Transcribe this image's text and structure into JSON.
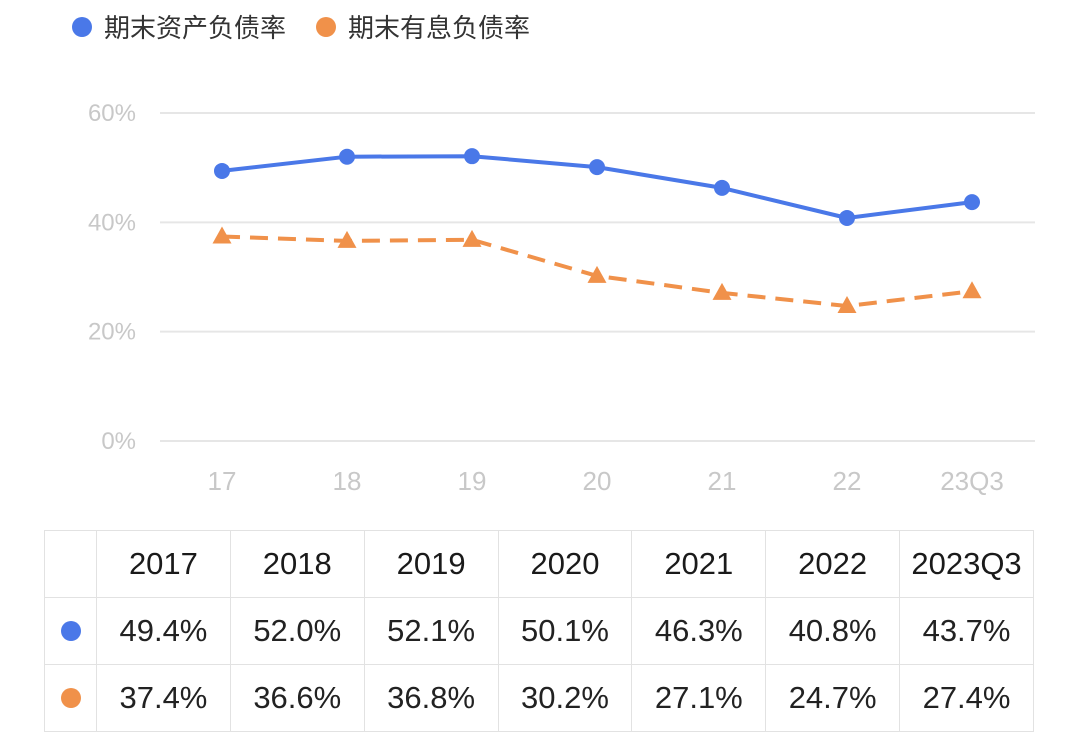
{
  "legend": [
    {
      "label": "期末资产负债率",
      "color": "#4a78e8"
    },
    {
      "label": "期末有息负债率",
      "color": "#f0914a"
    }
  ],
  "chart_data": {
    "type": "line",
    "categories": [
      "17",
      "18",
      "19",
      "20",
      "21",
      "22",
      "23Q3"
    ],
    "ylim": [
      0,
      60
    ],
    "yticks": [
      "0%",
      "20%",
      "40%",
      "60%"
    ],
    "ytick_values": [
      0,
      20,
      40,
      60
    ],
    "grid": true,
    "legend_position": "top-left",
    "series": [
      {
        "name": "期末资产负债率",
        "color": "#4a78e8",
        "style": "solid",
        "marker": "circle",
        "values": [
          49.4,
          52.0,
          52.1,
          50.1,
          46.3,
          40.8,
          43.7
        ]
      },
      {
        "name": "期末有息负债率",
        "color": "#f0914a",
        "style": "dashed",
        "marker": "triangle",
        "values": [
          37.4,
          36.6,
          36.8,
          30.2,
          27.1,
          24.7,
          27.4
        ]
      }
    ]
  },
  "table": {
    "headers": [
      "2017",
      "2018",
      "2019",
      "2020",
      "2021",
      "2022",
      "2023Q3"
    ],
    "rows": [
      {
        "color": "#4a78e8",
        "cells": [
          "49.4%",
          "52.0%",
          "52.1%",
          "50.1%",
          "46.3%",
          "40.8%",
          "43.7%"
        ]
      },
      {
        "color": "#f0914a",
        "cells": [
          "37.4%",
          "36.6%",
          "36.8%",
          "30.2%",
          "27.1%",
          "24.7%",
          "27.4%"
        ]
      }
    ]
  }
}
